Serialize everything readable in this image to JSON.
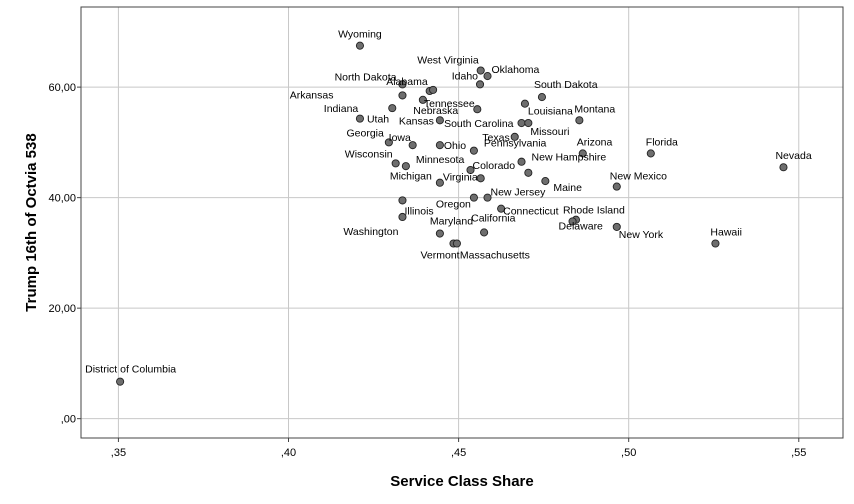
{
  "chart_data": {
    "type": "scatter",
    "title": "",
    "xlabel": "Service Class Share",
    "ylabel": "Trump 16th of Octvia 538",
    "xlim": [
      0.339,
      0.563
    ],
    "ylim": [
      -3.5,
      74.5
    ],
    "grid": true,
    "x_ticks": [
      0.35,
      0.4,
      0.45,
      0.5,
      0.55
    ],
    "x_tick_labels": [
      ",35",
      ",40",
      ",45",
      ",50",
      ",55"
    ],
    "y_ticks": [
      0,
      20,
      40,
      60
    ],
    "y_tick_labels": [
      ",00",
      "20,00",
      "40,00",
      "60,00"
    ],
    "colors": {
      "point_fill": "#6e6e6e",
      "point_stroke": "#222222",
      "grid": "#c8c8c8"
    },
    "points": [
      {
        "label": "Wyoming",
        "x": 0.421,
        "y": 67.5
      },
      {
        "label": "West Virginia",
        "x": 0.4565,
        "y": 63.0
      },
      {
        "label": "Oklahoma",
        "x": 0.4585,
        "y": 62.0
      },
      {
        "label": "Idaho",
        "x": 0.4563,
        "y": 60.5
      },
      {
        "label": "North Dakota",
        "x": 0.4335,
        "y": 60.5
      },
      {
        "label": "Alabama",
        "x": 0.4415,
        "y": 59.3
      },
      {
        "label": "",
        "x": 0.4425,
        "y": 59.5
      },
      {
        "label": "South Dakota",
        "x": 0.4745,
        "y": 58.2
      },
      {
        "label": "Arkansas",
        "x": 0.4335,
        "y": 58.5
      },
      {
        "label": "Tennessee",
        "x": 0.4395,
        "y": 57.7
      },
      {
        "label": "Indiana",
        "x": 0.4305,
        "y": 56.2
      },
      {
        "label": "Nebraska",
        "x": 0.4555,
        "y": 56.0
      },
      {
        "label": "Louisiana",
        "x": 0.4695,
        "y": 57.0
      },
      {
        "label": "Montana",
        "x": 0.4855,
        "y": 54.0
      },
      {
        "label": "Utah",
        "x": 0.421,
        "y": 54.3
      },
      {
        "label": "Kansas",
        "x": 0.4445,
        "y": 54.0
      },
      {
        "label": "South Carolina",
        "x": 0.4685,
        "y": 53.5
      },
      {
        "label": "Missouri",
        "x": 0.4705,
        "y": 53.5
      },
      {
        "label": "Texas",
        "x": 0.4665,
        "y": 51.0
      },
      {
        "label": "Georgia",
        "x": 0.4295,
        "y": 50.0
      },
      {
        "label": "Iowa",
        "x": 0.4365,
        "y": 49.5
      },
      {
        "label": "Ohio",
        "x": 0.4445,
        "y": 49.5
      },
      {
        "label": "Arizona",
        "x": 0.4865,
        "y": 48.0
      },
      {
        "label": "Pennsylvania",
        "x": 0.4545,
        "y": 48.5
      },
      {
        "label": "Florida",
        "x": 0.5065,
        "y": 48.0
      },
      {
        "label": "Nevada",
        "x": 0.5455,
        "y": 45.5
      },
      {
        "label": "Wisconsin",
        "x": 0.4315,
        "y": 46.2
      },
      {
        "label": "Minnesota",
        "x": 0.4345,
        "y": 45.7
      },
      {
        "label": "Colorado",
        "x": 0.4535,
        "y": 45.0
      },
      {
        "label": "New Hampshire",
        "x": 0.4685,
        "y": 46.5
      },
      {
        "label": "Michigan",
        "x": 0.4445,
        "y": 42.7
      },
      {
        "label": "Virginia",
        "x": 0.4565,
        "y": 43.5
      },
      {
        "label": "",
        "x": 0.4705,
        "y": 44.5
      },
      {
        "label": "New Mexico",
        "x": 0.4965,
        "y": 42.0
      },
      {
        "label": "Maine",
        "x": 0.4755,
        "y": 43.0
      },
      {
        "label": "Illinois",
        "x": 0.4335,
        "y": 39.5
      },
      {
        "label": "Oregon",
        "x": 0.4545,
        "y": 40.0
      },
      {
        "label": "New Jersey",
        "x": 0.4585,
        "y": 40.0
      },
      {
        "label": "Connecticut",
        "x": 0.4625,
        "y": 38.0
      },
      {
        "label": "Rhode Island",
        "x": 0.4845,
        "y": 36.0
      },
      {
        "label": "Washington",
        "x": 0.4335,
        "y": 36.5
      },
      {
        "label": "Delaware",
        "x": 0.4835,
        "y": 35.7
      },
      {
        "label": "Maryland",
        "x": 0.4445,
        "y": 33.5
      },
      {
        "label": "California",
        "x": 0.4575,
        "y": 33.7
      },
      {
        "label": "New York",
        "x": 0.4965,
        "y": 34.7
      },
      {
        "label": "Hawaii",
        "x": 0.5255,
        "y": 31.7
      },
      {
        "label": "Vermont",
        "x": 0.4485,
        "y": 31.7
      },
      {
        "label": "Massachusetts",
        "x": 0.4495,
        "y": 31.7
      },
      {
        "label": "District of Columbia",
        "x": 0.3505,
        "y": 6.7
      }
    ]
  }
}
